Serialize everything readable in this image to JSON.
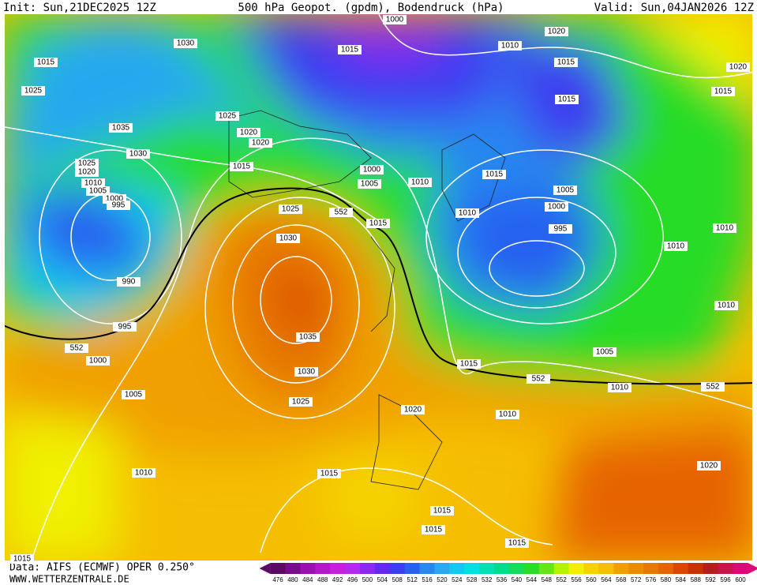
{
  "header": {
    "init": "Init: Sun,21DEC2025 12Z",
    "title": "500 hPa Geopot. (gpdm), Bodendruck (hPa)",
    "valid": "Valid: Sun,04JAN2026 12Z"
  },
  "footer": {
    "source": "Data: AIFS (ECMWF) OPER 0.250°",
    "site": "WWW.WETTERZENTRALE.DE"
  },
  "colorbar": {
    "labels": [
      476,
      480,
      484,
      488,
      492,
      496,
      500,
      504,
      508,
      512,
      516,
      520,
      524,
      528,
      532,
      536,
      540,
      544,
      548,
      552,
      556,
      560,
      564,
      568,
      572,
      576,
      580,
      584,
      588,
      592,
      596,
      600
    ],
    "colors": [
      "#5a0a64",
      "#7a0a8c",
      "#9a10b0",
      "#b418c8",
      "#c81ee0",
      "#b428f0",
      "#8c28f0",
      "#6428f0",
      "#3c3cf0",
      "#2860f0",
      "#2888f0",
      "#28a8f0",
      "#14c8f0",
      "#00e0e0",
      "#00e0b4",
      "#00dc8c",
      "#14dc5a",
      "#28dc28",
      "#64e614",
      "#b4f000",
      "#f0f000",
      "#f5d200",
      "#f5be00",
      "#f0a000",
      "#eb8c00",
      "#e67800",
      "#e66400",
      "#dc4600",
      "#c83200",
      "#b41e1e",
      "#c8144b",
      "#dc0a78"
    ]
  },
  "isobar_labels": [
    1000,
    1015,
    1010,
    1020,
    1015,
    1020,
    1015,
    1015,
    1030,
    1015,
    1025,
    1035,
    1025,
    1020,
    1020,
    1030,
    1025,
    1020,
    1010,
    1005,
    1000,
    995,
    1015,
    1000,
    1005,
    1010,
    1015,
    1005,
    1000,
    1010,
    1025,
    552,
    1015,
    995,
    1010,
    1030,
    1010,
    990,
    1010,
    995,
    1035,
    552,
    1000,
    1005,
    1015,
    1030,
    552,
    1010,
    552,
    1005,
    1025,
    1020,
    1010,
    1020,
    1010,
    1015,
    1015,
    1015,
    1015,
    1015
  ]
}
